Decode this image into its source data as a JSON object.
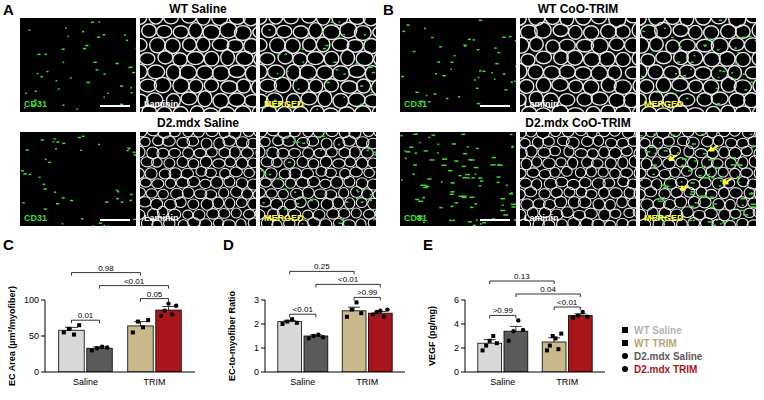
{
  "panels": [
    {
      "label": "A",
      "rows": [
        {
          "title": "WT Saline",
          "channels": [
            "CD31",
            "Laminin",
            "MERGED"
          ]
        },
        {
          "title": "D2.mdx Saline",
          "channels": [
            "CD31",
            "Laminin",
            "MERGED"
          ]
        }
      ]
    },
    {
      "label": "B",
      "rows": [
        {
          "title": "WT CoO-TRIM",
          "channels": [
            "CD31",
            "Laminin",
            "MERGED"
          ]
        },
        {
          "title": "D2.mdx CoO-TRIM",
          "channels": [
            "CD31",
            "Laminin",
            "MERGED"
          ]
        }
      ]
    }
  ],
  "chart_data": [
    {
      "label": "C",
      "type": "bar",
      "y_label": "EC Area (µm²/myofiber)",
      "categories": [
        "Saline",
        "TRIM"
      ],
      "ylim": [
        0,
        100
      ],
      "yticks": [
        0,
        50,
        100
      ],
      "series": [
        {
          "colors": [
            "#d9d9d9",
            "#c9b98b"
          ],
          "marker": "square",
          "values": [
            58,
            64
          ],
          "errors": [
            4,
            6
          ],
          "points": [
            [
              55,
              60,
              52,
              65
            ],
            [
              55,
              70,
              62,
              72
            ]
          ]
        },
        {
          "colors": [
            "#5a5a5a",
            "#a8161b"
          ],
          "marker": "circle",
          "values": [
            33,
            86
          ],
          "errors": [
            2,
            5
          ],
          "points": [
            [
              30,
              33,
              35,
              34
            ],
            [
              78,
              85,
              95,
              80,
              92
            ]
          ]
        }
      ],
      "comparisons": [
        {
          "label": "0.01",
          "bars": [
            [
              0,
              0
            ],
            [
              1,
              0
            ]
          ]
        },
        {
          "label": "0.05",
          "bars": [
            [
              0,
              1
            ],
            [
              1,
              1
            ]
          ]
        },
        {
          "label": "<0.01",
          "bars": [
            [
              1,
              0
            ],
            [
              1,
              1
            ]
          ]
        },
        {
          "label": "0.98",
          "bars": [
            [
              0,
              0
            ],
            [
              0,
              1
            ]
          ]
        }
      ]
    },
    {
      "label": "D",
      "type": "bar",
      "y_label": "EC-to-myofiber Ratio",
      "categories": [
        "Saline",
        "TRIM"
      ],
      "ylim": [
        0,
        3
      ],
      "yticks": [
        0,
        1,
        2,
        3
      ],
      "series": [
        {
          "colors": [
            "#d9d9d9",
            "#c9b98b"
          ],
          "marker": "square",
          "values": [
            2.1,
            2.55
          ],
          "errors": [
            0.05,
            0.15
          ],
          "points": [
            [
              2.0,
              2.1,
              2.2,
              2.05
            ],
            [
              2.3,
              2.6,
              2.9,
              2.45
            ]
          ]
        },
        {
          "colors": [
            "#5a5a5a",
            "#a8161b"
          ],
          "marker": "circle",
          "values": [
            1.5,
            2.45
          ],
          "errors": [
            0.05,
            0.07
          ],
          "points": [
            [
              1.4,
              1.5,
              1.55,
              1.45
            ],
            [
              2.4,
              2.5,
              2.55,
              2.3,
              2.6
            ]
          ]
        }
      ],
      "comparisons": [
        {
          "label": "<0.01",
          "bars": [
            [
              0,
              0
            ],
            [
              1,
              0
            ]
          ]
        },
        {
          "label": ">0.99",
          "bars": [
            [
              0,
              1
            ],
            [
              1,
              1
            ]
          ]
        },
        {
          "label": "<0.01",
          "bars": [
            [
              1,
              0
            ],
            [
              1,
              1
            ]
          ]
        },
        {
          "label": "0.25",
          "bars": [
            [
              0,
              0
            ],
            [
              0,
              1
            ]
          ]
        }
      ]
    },
    {
      "label": "E",
      "type": "bar",
      "y_label": "VEGF (pg/mg)",
      "categories": [
        "Saline",
        "TRIM"
      ],
      "ylim": [
        0,
        6
      ],
      "yticks": [
        0,
        2,
        4,
        6
      ],
      "series": [
        {
          "colors": [
            "#d9d9d9",
            "#c9b98b"
          ],
          "marker": "square",
          "values": [
            2.4,
            2.5
          ],
          "errors": [
            0.3,
            0.35
          ],
          "points": [
            [
              1.8,
              2.2,
              2.6,
              3.0,
              2.4
            ],
            [
              1.8,
              2.2,
              3.0,
              2.8,
              1.9,
              3.2
            ]
          ]
        },
        {
          "colors": [
            "#5a5a5a",
            "#a8161b"
          ],
          "marker": "circle",
          "values": [
            3.4,
            4.7
          ],
          "errors": [
            0.4,
            0.15
          ],
          "points": [
            [
              2.6,
              3.4,
              4.3,
              3.5
            ],
            [
              4.5,
              4.7,
              5.0,
              4.6
            ]
          ]
        }
      ],
      "comparisons": [
        {
          "label": ">0.99",
          "bars": [
            [
              0,
              0
            ],
            [
              1,
              0
            ]
          ]
        },
        {
          "label": "<0.01",
          "bars": [
            [
              0,
              1
            ],
            [
              1,
              1
            ]
          ]
        },
        {
          "label": "0.04",
          "bars": [
            [
              1,
              0
            ],
            [
              1,
              1
            ]
          ]
        },
        {
          "label": "0.13",
          "bars": [
            [
              0,
              0
            ],
            [
              0,
              1
            ]
          ]
        }
      ]
    }
  ],
  "legend_items": [
    {
      "label": "WT Saline",
      "color": "#b5b5b5",
      "marker": "square"
    },
    {
      "label": "WT TRIM",
      "color": "#b8a675",
      "marker": "square"
    },
    {
      "label": "D2.mdx Saline",
      "color": "#5a5a5a",
      "marker": "circle"
    },
    {
      "label": "D2.mdx TRIM",
      "color": "#a8161b",
      "marker": "circle"
    }
  ]
}
